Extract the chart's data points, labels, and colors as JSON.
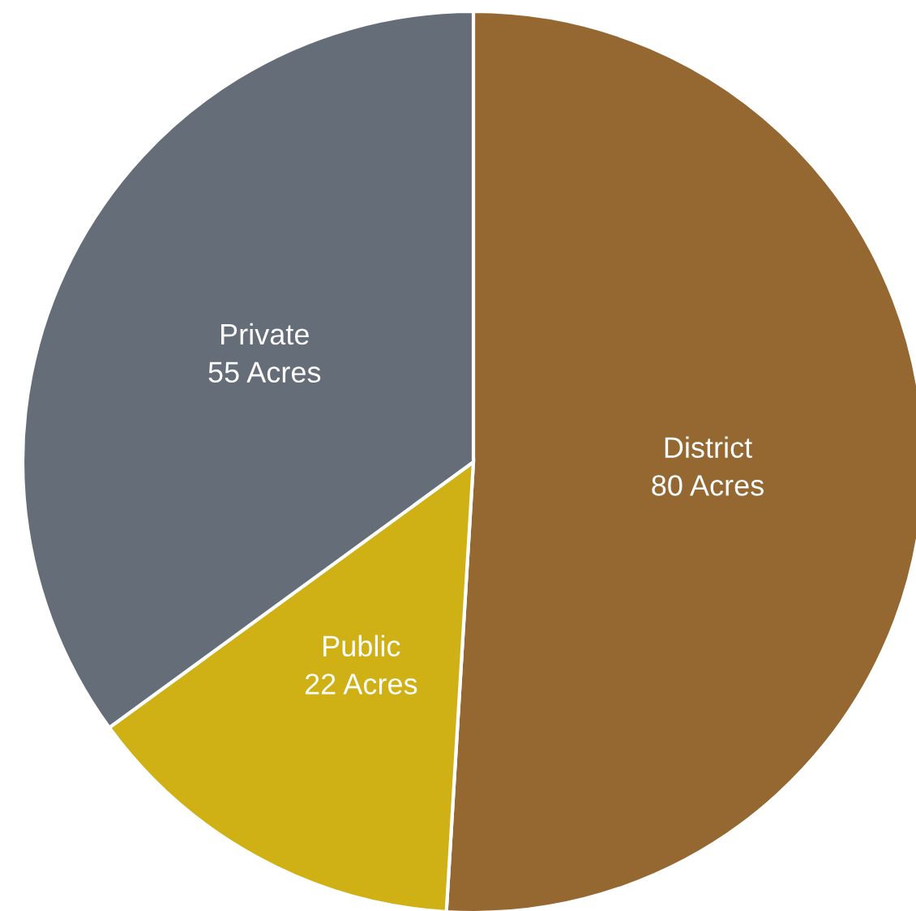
{
  "chart_data": {
    "type": "pie",
    "categories": [
      "District",
      "Public",
      "Private"
    ],
    "values": [
      80,
      22,
      55
    ],
    "value_labels": [
      "80 Acres",
      "22 Acres",
      "55 Acres"
    ],
    "colors": [
      "#956731",
      "#cfb015",
      "#656d78"
    ],
    "legend": false
  }
}
